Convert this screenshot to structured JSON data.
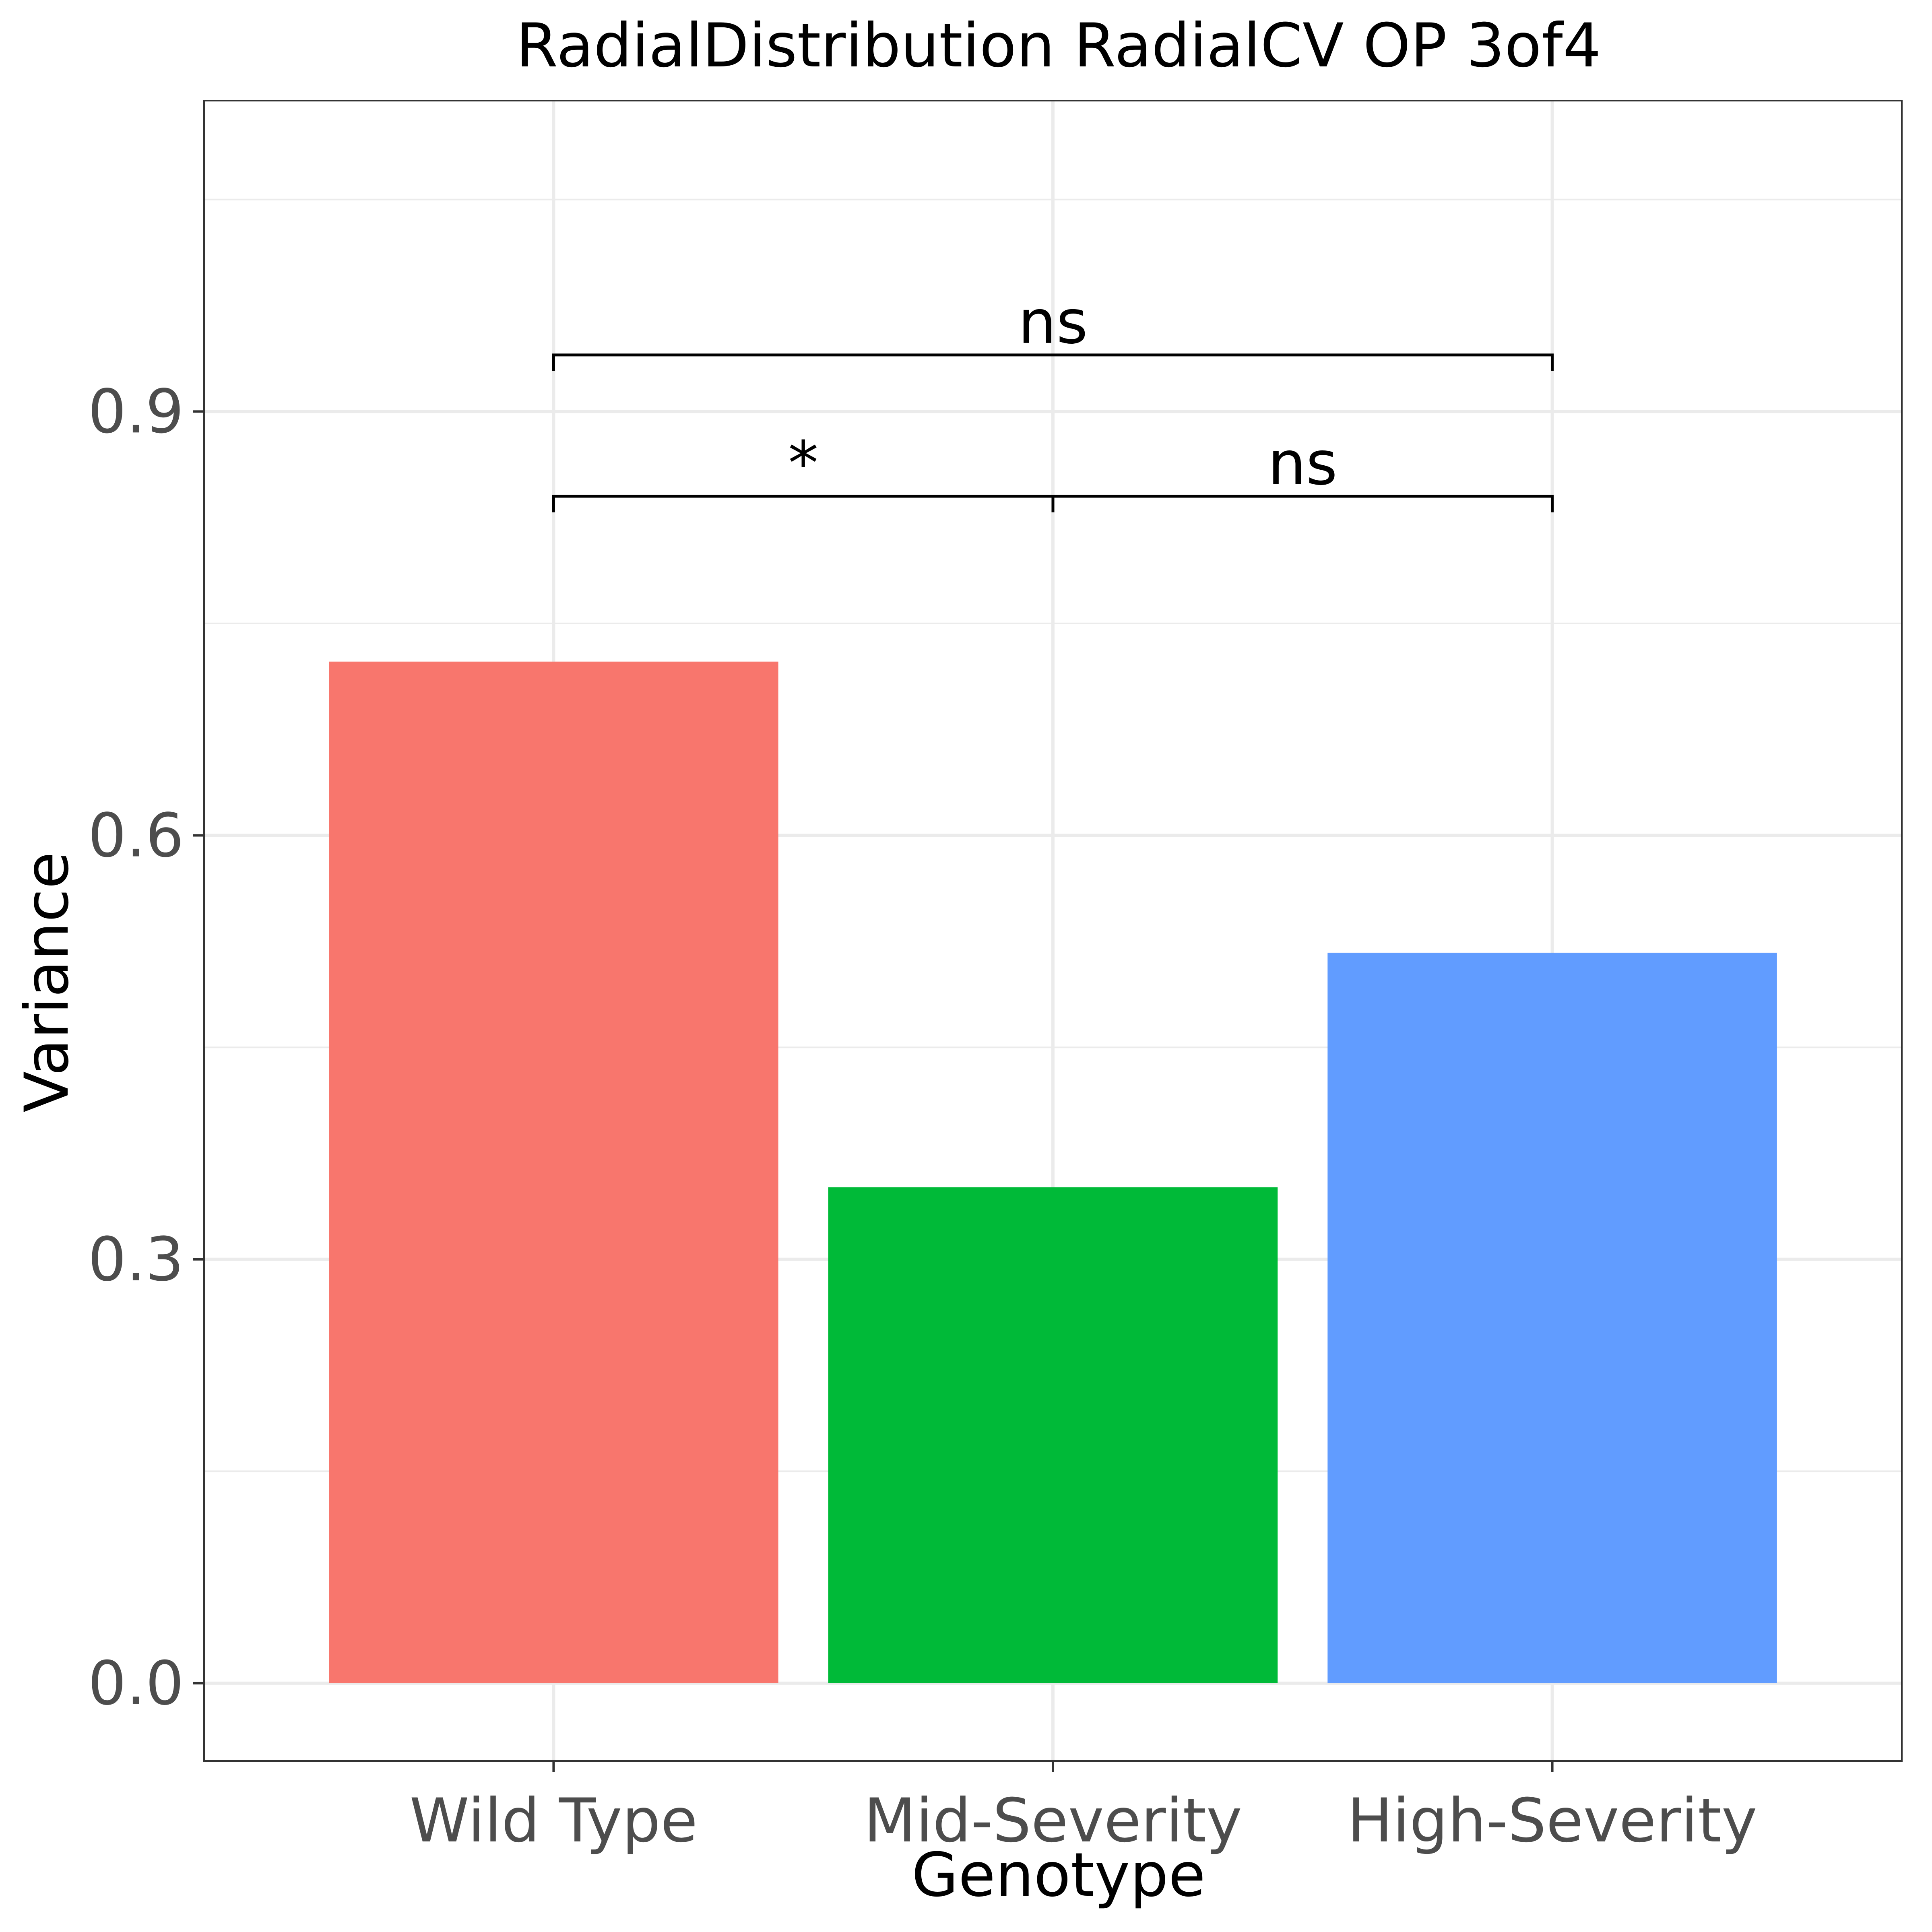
{
  "chart_data": {
    "type": "bar",
    "title": "RadialDistribution RadialCV OP 3of4",
    "xlabel": "Genotype",
    "ylabel": "Variance",
    "categories": [
      "Wild Type",
      "Mid-Severity",
      "High-Severity"
    ],
    "values": [
      0.723,
      0.351,
      0.517
    ],
    "colors": [
      "#F8766D",
      "#00BA38",
      "#619CFF"
    ],
    "ylim": [
      -0.055,
      1.12
    ],
    "yticks": [
      0.0,
      0.3,
      0.6,
      0.9
    ],
    "ytick_labels": [
      "0.0",
      "0.3",
      "0.6",
      "0.9"
    ],
    "grid": true,
    "legend": "none",
    "comparisons": [
      {
        "from": "Wild Type",
        "to": "Mid-Severity",
        "label": "*",
        "y": 0.84
      },
      {
        "from": "Mid-Severity",
        "to": "High-Severity",
        "label": "ns",
        "y": 0.84
      },
      {
        "from": "Wild Type",
        "to": "High-Severity",
        "label": "ns",
        "y": 0.94
      }
    ]
  }
}
